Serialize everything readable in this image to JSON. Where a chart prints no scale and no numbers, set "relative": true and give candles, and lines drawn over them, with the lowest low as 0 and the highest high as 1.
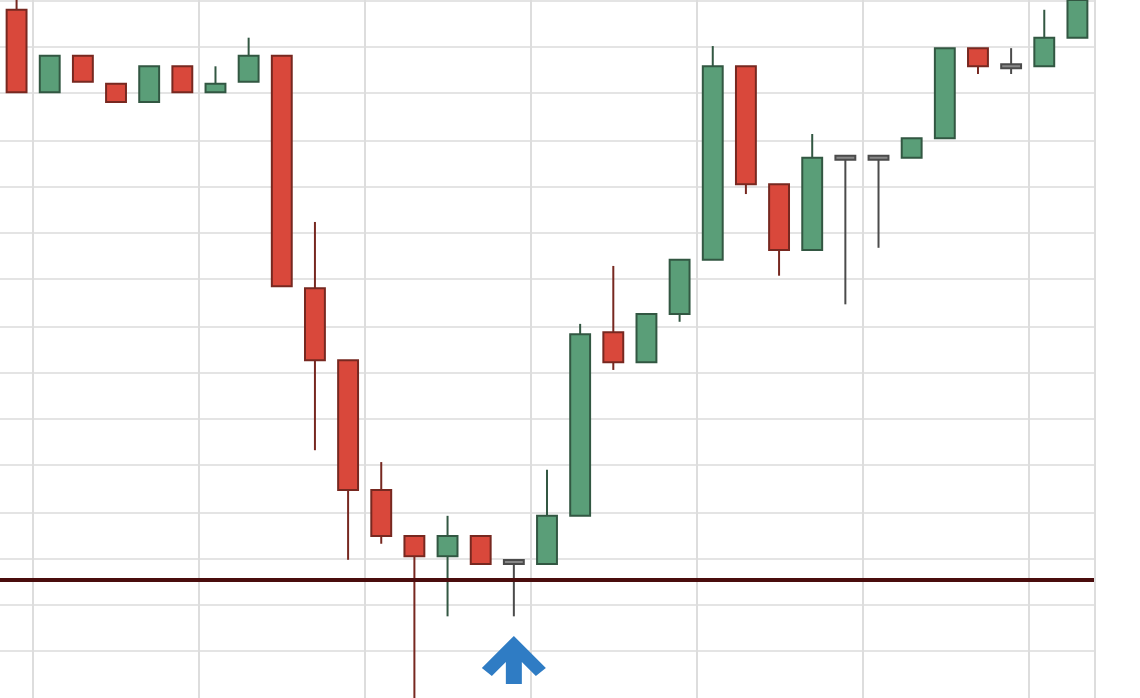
{
  "chart_data": {
    "type": "candlestick",
    "relative": true,
    "grid": true,
    "categories": [
      null,
      null,
      null,
      null,
      null,
      null,
      null,
      null,
      null,
      null,
      null,
      null,
      null,
      null,
      null,
      null,
      null,
      null,
      null,
      null,
      null,
      null,
      null,
      null,
      null,
      null,
      null,
      null,
      null,
      null,
      null,
      null,
      null
    ],
    "ohlc": [
      [
        0.986,
        1,
        0.868,
        0.868
      ],
      [
        0.868,
        0.92,
        0.868,
        0.92
      ],
      [
        0.92,
        0.92,
        0.883,
        0.883
      ],
      [
        0.88,
        0.88,
        0.854,
        0.854
      ],
      [
        0.854,
        0.905,
        0.854,
        0.905
      ],
      [
        0.905,
        0.905,
        0.868,
        0.868
      ],
      [
        0.868,
        0.905,
        0.868,
        0.88
      ],
      [
        0.883,
        0.946,
        0.883,
        0.92
      ],
      [
        0.92,
        0.92,
        0.59,
        0.59
      ],
      [
        0.587,
        0.682,
        0.355,
        0.484
      ],
      [
        0.484,
        0.484,
        0.198,
        0.298
      ],
      [
        0.298,
        0.338,
        0.221,
        0.232
      ],
      [
        0.232,
        0.232,
        0,
        0.203
      ],
      [
        0.203,
        0.261,
        0.117,
        0.232
      ],
      [
        0.232,
        0.232,
        0.192,
        0.192
      ],
      [
        0.195,
        0.195,
        0.117,
        0.195
      ],
      [
        0.192,
        0.327,
        0.192,
        0.261
      ],
      [
        0.261,
        0.536,
        0.261,
        0.521
      ],
      [
        0.524,
        0.619,
        0.47,
        0.481
      ],
      [
        0.481,
        0.55,
        0.481,
        0.55
      ],
      [
        0.55,
        0.628,
        0.539,
        0.628
      ],
      [
        0.628,
        0.934,
        0.628,
        0.905
      ],
      [
        0.905,
        0.905,
        0.722,
        0.736
      ],
      [
        0.736,
        0.736,
        0.605,
        0.642
      ],
      [
        0.642,
        0.808,
        0.642,
        0.774
      ],
      [
        0.774,
        0.774,
        0.564,
        0.774
      ],
      [
        0.774,
        0.774,
        0.645,
        0.774
      ],
      [
        0.774,
        0.802,
        0.774,
        0.802
      ],
      [
        0.802,
        0.931,
        0.802,
        0.931
      ],
      [
        0.931,
        0.931,
        0.894,
        0.905
      ],
      [
        0.905,
        0.931,
        0.894,
        0.905
      ],
      [
        0.905,
        0.986,
        0.905,
        0.946
      ],
      [
        0.946,
        1,
        0.946,
        1
      ]
    ],
    "colors": [
      "#d9483b",
      "#5a9e78",
      "#d9483b",
      "#d9483b",
      "#5a9e78",
      "#d9483b",
      "#5a9e78",
      "#5a9e78",
      "#d9483b",
      "#d9483b",
      "#d9483b",
      "#d9483b",
      "#d9483b",
      "#5a9e78",
      "#d9483b",
      "#888888",
      "#5a9e78",
      "#5a9e78",
      "#d9483b",
      "#5a9e78",
      "#5a9e78",
      "#5a9e78",
      "#d9483b",
      "#d9483b",
      "#5a9e78",
      "#888888",
      "#888888",
      "#5a9e78",
      "#5a9e78",
      "#d9483b",
      "#888888",
      "#5a9e78",
      "#5a9e78"
    ],
    "ref_lines": [
      {
        "axis": "y",
        "value": 0.166,
        "color": "#4a0d0d"
      }
    ]
  }
}
